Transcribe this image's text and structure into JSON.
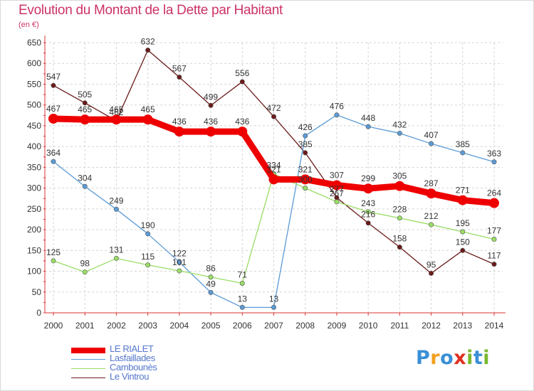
{
  "header": {
    "title": "Evolution du Montant de la Dette par Habitant",
    "subtitle": "(en €)"
  },
  "logo": {
    "text": "Proxiti",
    "letters": [
      "P",
      "r",
      "o",
      "x",
      "i",
      "t",
      "i"
    ],
    "colors": [
      "#3a8fd6",
      "#f0a020",
      "#3a8fd6",
      "#e03020",
      "#7ab830",
      "#3a8fd6",
      "#7ab830"
    ]
  },
  "chart_data": {
    "type": "line",
    "title": "Evolution du Montant de la Dette par Habitant",
    "subtitle": "(en €)",
    "xlabel": "",
    "ylabel": "",
    "x": [
      2000,
      2001,
      2002,
      2003,
      2004,
      2005,
      2006,
      2007,
      2008,
      2009,
      2010,
      2011,
      2012,
      2013,
      2014
    ],
    "ylim": [
      0,
      650
    ],
    "yticks": [
      0,
      50,
      100,
      150,
      200,
      250,
      300,
      350,
      400,
      450,
      500,
      550,
      600,
      650
    ],
    "grid": true,
    "legend_position": "bottom-left",
    "series": [
      {
        "name": "Le Vintrou",
        "color": "#6b1a1a",
        "values": [
          547,
          505,
          462,
          632,
          567,
          499,
          556,
          472,
          385,
          277,
          216,
          158,
          95,
          150,
          117
        ]
      },
      {
        "name": "Lasfaillades",
        "color": "#5b9bd5",
        "values": [
          364,
          304,
          249,
          190,
          122,
          49,
          13,
          13,
          426,
          476,
          448,
          432,
          407,
          385,
          363
        ]
      },
      {
        "name": "Cambounès",
        "color": "#99dd66",
        "values": [
          125,
          98,
          131,
          115,
          101,
          86,
          71,
          334,
          300,
          267,
          243,
          228,
          212,
          195,
          177
        ]
      },
      {
        "name": "LE RIALET",
        "color": "#ee0000",
        "values": [
          467,
          465,
          465,
          465,
          436,
          436,
          436,
          321,
          321,
          307,
          299,
          305,
          287,
          271,
          264
        ]
      }
    ],
    "legend_order": [
      "LE RIALET",
      "Lasfaillades",
      "Cambounès",
      "Le Vintrou"
    ]
  }
}
